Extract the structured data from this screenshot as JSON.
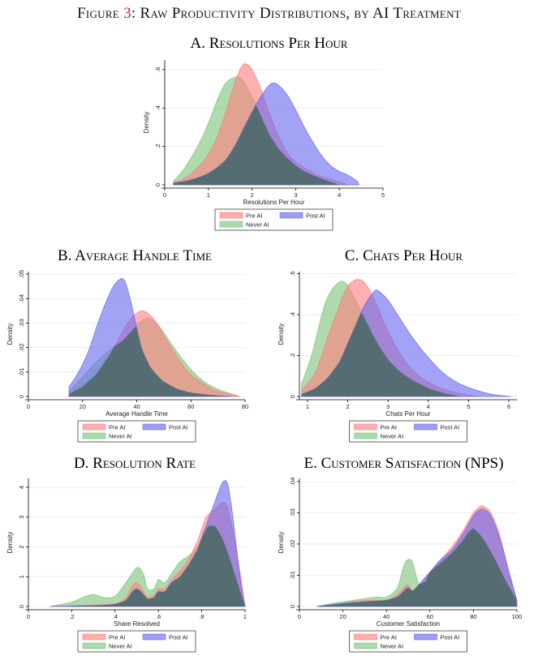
{
  "figure": {
    "prefix": "Figure ",
    "number": "3",
    "suffix": ": Raw Productivity Distributions, by AI Treatment"
  },
  "colors": {
    "pre": "#ff8080",
    "post": "#6a6af0",
    "never": "#7dc47d",
    "overlap": "#4f6b6a"
  },
  "legend": {
    "pre": "Pre AI",
    "post": "Post AI",
    "never": "Never AI"
  },
  "chart_data": [
    {
      "id": "A",
      "type": "area",
      "title": "A. Resolutions Per Hour",
      "xlabel": "Resolutions Per Hour",
      "ylabel": "Density",
      "xlim": [
        0,
        5
      ],
      "ylim": [
        0,
        0.65
      ],
      "xticks": [
        0,
        1,
        2,
        3,
        4,
        5
      ],
      "xtick_labels": [
        "0",
        "1",
        "2",
        "3",
        "4",
        "5"
      ],
      "yticks": [
        0,
        0.2,
        0.4,
        0.6
      ],
      "ytick_labels": [
        "0",
        ".2",
        ".4",
        ".6"
      ],
      "series": [
        {
          "name": "Pre AI",
          "key": "pre",
          "x": [
            0.2,
            0.5,
            0.8,
            1.0,
            1.2,
            1.4,
            1.6,
            1.75,
            1.85,
            2.0,
            2.2,
            2.4,
            2.6,
            2.8,
            3.0,
            3.2,
            3.5,
            3.8,
            4.0,
            4.2
          ],
          "y": [
            0.01,
            0.04,
            0.1,
            0.16,
            0.25,
            0.38,
            0.53,
            0.61,
            0.63,
            0.6,
            0.5,
            0.37,
            0.26,
            0.17,
            0.12,
            0.09,
            0.05,
            0.03,
            0.015,
            0.0
          ]
        },
        {
          "name": "Post AI",
          "key": "post",
          "x": [
            0.2,
            0.5,
            0.8,
            1.0,
            1.2,
            1.4,
            1.6,
            1.8,
            2.0,
            2.2,
            2.4,
            2.5,
            2.6,
            2.8,
            3.0,
            3.2,
            3.4,
            3.6,
            3.8,
            4.0,
            4.2,
            4.4,
            4.45
          ],
          "y": [
            0.01,
            0.02,
            0.04,
            0.06,
            0.09,
            0.13,
            0.2,
            0.29,
            0.38,
            0.46,
            0.52,
            0.53,
            0.52,
            0.47,
            0.39,
            0.3,
            0.22,
            0.15,
            0.1,
            0.07,
            0.05,
            0.02,
            0.0
          ]
        },
        {
          "name": "Never AI",
          "key": "never",
          "x": [
            0.2,
            0.4,
            0.6,
            0.8,
            1.0,
            1.2,
            1.4,
            1.6,
            1.7,
            1.8,
            2.0,
            2.2,
            2.4,
            2.6,
            2.8,
            3.0,
            3.2,
            3.5,
            3.8,
            4.0
          ],
          "y": [
            0.02,
            0.07,
            0.14,
            0.22,
            0.32,
            0.44,
            0.53,
            0.56,
            0.56,
            0.54,
            0.46,
            0.36,
            0.26,
            0.19,
            0.14,
            0.1,
            0.07,
            0.04,
            0.015,
            0.0
          ]
        }
      ]
    },
    {
      "id": "B",
      "type": "area",
      "title": "B. Average Handle Time",
      "xlabel": "Average Handle Time",
      "ylabel": "Density",
      "xlim": [
        0,
        80
      ],
      "ylim": [
        0,
        0.051
      ],
      "xticks": [
        0,
        20,
        40,
        60,
        80
      ],
      "xtick_labels": [
        "0",
        "20",
        "40",
        "60",
        "80"
      ],
      "yticks": [
        0,
        0.01,
        0.02,
        0.03,
        0.04,
        0.05
      ],
      "ytick_labels": [
        "0",
        ".01",
        ".02",
        ".03",
        ".04",
        ".05"
      ],
      "series": [
        {
          "name": "Pre AI",
          "key": "pre",
          "x": [
            15,
            20,
            25,
            30,
            35,
            38,
            40,
            42,
            44,
            46,
            48,
            50,
            55,
            60,
            65,
            70,
            75,
            78
          ],
          "y": [
            0.001,
            0.004,
            0.009,
            0.017,
            0.027,
            0.032,
            0.034,
            0.035,
            0.034,
            0.032,
            0.029,
            0.025,
            0.016,
            0.009,
            0.005,
            0.002,
            0.001,
            0.0
          ]
        },
        {
          "name": "Post AI",
          "key": "post",
          "x": [
            15,
            18,
            22,
            26,
            30,
            32,
            34,
            35,
            36,
            38,
            40,
            42,
            45,
            48,
            50,
            55,
            60,
            65,
            70,
            75
          ],
          "y": [
            0.004,
            0.009,
            0.018,
            0.031,
            0.042,
            0.046,
            0.048,
            0.048,
            0.046,
            0.038,
            0.028,
            0.019,
            0.012,
            0.008,
            0.006,
            0.003,
            0.0015,
            0.0008,
            0.0003,
            0.0
          ]
        },
        {
          "name": "Never AI",
          "key": "never",
          "x": [
            15,
            20,
            25,
            30,
            35,
            40,
            42,
            44,
            46,
            48,
            50,
            55,
            60,
            65,
            70,
            75,
            78
          ],
          "y": [
            0.002,
            0.008,
            0.014,
            0.019,
            0.023,
            0.029,
            0.031,
            0.032,
            0.031,
            0.029,
            0.026,
            0.018,
            0.011,
            0.006,
            0.003,
            0.001,
            0.0
          ]
        }
      ]
    },
    {
      "id": "C",
      "type": "area",
      "title": "C. Chats Per Hour",
      "xlabel": "Chats Per Hour",
      "ylabel": "Density",
      "xlim": [
        0.8,
        6.2
      ],
      "ylim": [
        0,
        0.61
      ],
      "xticks": [
        1,
        2,
        3,
        4,
        5,
        6
      ],
      "xtick_labels": [
        "1",
        "2",
        "3",
        "4",
        "5",
        "6"
      ],
      "yticks": [
        0,
        0.2,
        0.4,
        0.6
      ],
      "ytick_labels": [
        "0",
        ".2",
        ".4",
        ".6"
      ],
      "series": [
        {
          "name": "Pre AI",
          "key": "pre",
          "x": [
            0.85,
            1.2,
            1.5,
            1.8,
            2.0,
            2.2,
            2.3,
            2.4,
            2.6,
            2.8,
            3.0,
            3.3,
            3.6,
            4.0,
            4.4,
            4.8,
            5.2
          ],
          "y": [
            0.03,
            0.12,
            0.29,
            0.45,
            0.54,
            0.57,
            0.57,
            0.56,
            0.5,
            0.41,
            0.32,
            0.21,
            0.13,
            0.07,
            0.035,
            0.015,
            0.0
          ]
        },
        {
          "name": "Post AI",
          "key": "post",
          "x": [
            0.85,
            1.2,
            1.5,
            1.8,
            2.0,
            2.2,
            2.4,
            2.6,
            2.7,
            2.8,
            3.0,
            3.3,
            3.6,
            4.0,
            4.4,
            4.8,
            5.2,
            5.6,
            6.05
          ],
          "y": [
            0.01,
            0.04,
            0.09,
            0.17,
            0.26,
            0.35,
            0.44,
            0.5,
            0.52,
            0.51,
            0.47,
            0.38,
            0.29,
            0.19,
            0.11,
            0.06,
            0.03,
            0.01,
            0.0
          ]
        },
        {
          "name": "Never AI",
          "key": "never",
          "x": [
            0.85,
            1.1,
            1.4,
            1.6,
            1.8,
            1.9,
            2.0,
            2.2,
            2.4,
            2.6,
            2.8,
            3.0,
            3.3,
            3.6,
            4.0,
            4.4,
            4.8
          ],
          "y": [
            0.06,
            0.2,
            0.43,
            0.52,
            0.56,
            0.56,
            0.54,
            0.47,
            0.39,
            0.31,
            0.24,
            0.18,
            0.12,
            0.08,
            0.04,
            0.015,
            0.0
          ]
        }
      ]
    },
    {
      "id": "D",
      "type": "area",
      "title": "D. Resolution Rate",
      "xlabel": "Share Resolved",
      "ylabel": "Density",
      "xlim": [
        0,
        1
      ],
      "ylim": [
        0,
        4.3
      ],
      "xticks": [
        0,
        0.2,
        0.4,
        0.6,
        0.8,
        1
      ],
      "xtick_labels": [
        "0",
        ".2",
        ".4",
        ".6",
        ".8",
        "1"
      ],
      "yticks": [
        0,
        1,
        2,
        3,
        4
      ],
      "ytick_labels": [
        "0",
        "1",
        "2",
        "3",
        "4"
      ],
      "series": [
        {
          "name": "Pre AI",
          "key": "pre",
          "x": [
            0.1,
            0.3,
            0.4,
            0.45,
            0.48,
            0.5,
            0.52,
            0.55,
            0.58,
            0.6,
            0.63,
            0.66,
            0.7,
            0.74,
            0.78,
            0.8,
            0.82,
            0.85,
            0.88,
            0.9,
            0.92,
            0.95,
            0.98,
            1.0
          ],
          "y": [
            0.0,
            0.05,
            0.1,
            0.3,
            0.7,
            0.8,
            0.65,
            0.3,
            0.4,
            0.6,
            0.6,
            0.9,
            1.2,
            1.6,
            2.2,
            2.6,
            3.0,
            3.2,
            3.4,
            3.5,
            3.3,
            2.3,
            1.0,
            0.0
          ]
        },
        {
          "name": "Post AI",
          "key": "post",
          "x": [
            0.1,
            0.3,
            0.4,
            0.45,
            0.48,
            0.5,
            0.52,
            0.55,
            0.58,
            0.6,
            0.63,
            0.66,
            0.7,
            0.74,
            0.78,
            0.8,
            0.83,
            0.86,
            0.88,
            0.9,
            0.92,
            0.94,
            0.96,
            0.98,
            1.0
          ],
          "y": [
            0.0,
            0.03,
            0.07,
            0.2,
            0.5,
            0.6,
            0.5,
            0.25,
            0.3,
            0.5,
            0.5,
            0.8,
            1.0,
            1.4,
            1.9,
            2.3,
            2.9,
            3.5,
            3.9,
            4.2,
            4.1,
            3.2,
            2.0,
            0.8,
            0.0
          ]
        },
        {
          "name": "Never AI",
          "key": "never",
          "x": [
            0.1,
            0.2,
            0.25,
            0.3,
            0.35,
            0.4,
            0.45,
            0.5,
            0.53,
            0.55,
            0.58,
            0.6,
            0.63,
            0.66,
            0.7,
            0.74,
            0.78,
            0.8,
            0.83,
            0.86,
            0.88,
            0.9,
            0.93,
            0.96,
            1.0
          ],
          "y": [
            0.0,
            0.15,
            0.3,
            0.4,
            0.3,
            0.35,
            0.8,
            1.3,
            1.1,
            0.6,
            0.6,
            0.9,
            0.8,
            1.1,
            1.5,
            1.7,
            2.0,
            2.3,
            2.7,
            2.7,
            2.5,
            2.2,
            1.6,
            0.9,
            0.0
          ]
        }
      ]
    },
    {
      "id": "E",
      "type": "area",
      "title": "E. Customer Satisfaction (NPS)",
      "xlabel": "Customer Satisfaction",
      "ylabel": "Density",
      "xlim": [
        0,
        100
      ],
      "ylim": [
        0,
        0.041
      ],
      "xticks": [
        0,
        20,
        40,
        60,
        80,
        100
      ],
      "xtick_labels": [
        "0",
        "20",
        "40",
        "60",
        "80",
        "100"
      ],
      "yticks": [
        0,
        0.01,
        0.02,
        0.03,
        0.04
      ],
      "ytick_labels": [
        "0",
        ".01",
        ".02",
        ".03",
        ".04"
      ],
      "series": [
        {
          "name": "Pre AI",
          "key": "pre",
          "x": [
            8,
            20,
            30,
            40,
            45,
            48,
            50,
            52,
            55,
            60,
            65,
            70,
            75,
            80,
            83,
            85,
            88,
            92,
            96,
            100
          ],
          "y": [
            0.0,
            0.001,
            0.002,
            0.002,
            0.004,
            0.006,
            0.007,
            0.005,
            0.007,
            0.011,
            0.015,
            0.019,
            0.024,
            0.03,
            0.032,
            0.032,
            0.03,
            0.023,
            0.012,
            0.002
          ]
        },
        {
          "name": "Post AI",
          "key": "post",
          "x": [
            8,
            20,
            30,
            40,
            45,
            48,
            50,
            52,
            55,
            60,
            65,
            70,
            75,
            80,
            83,
            85,
            88,
            92,
            96,
            100
          ],
          "y": [
            0.0,
            0.001,
            0.0015,
            0.002,
            0.003,
            0.005,
            0.006,
            0.005,
            0.007,
            0.011,
            0.015,
            0.018,
            0.023,
            0.029,
            0.031,
            0.031,
            0.029,
            0.022,
            0.012,
            0.002
          ]
        },
        {
          "name": "Never AI",
          "key": "never",
          "x": [
            8,
            15,
            25,
            35,
            40,
            45,
            48,
            50,
            52,
            55,
            58,
            60,
            65,
            70,
            75,
            78,
            80,
            83,
            86,
            90,
            95,
            100
          ],
          "y": [
            0.0,
            0.001,
            0.002,
            0.003,
            0.003,
            0.006,
            0.013,
            0.015,
            0.014,
            0.007,
            0.008,
            0.011,
            0.014,
            0.017,
            0.021,
            0.024,
            0.025,
            0.023,
            0.02,
            0.015,
            0.008,
            0.002
          ]
        }
      ]
    }
  ]
}
